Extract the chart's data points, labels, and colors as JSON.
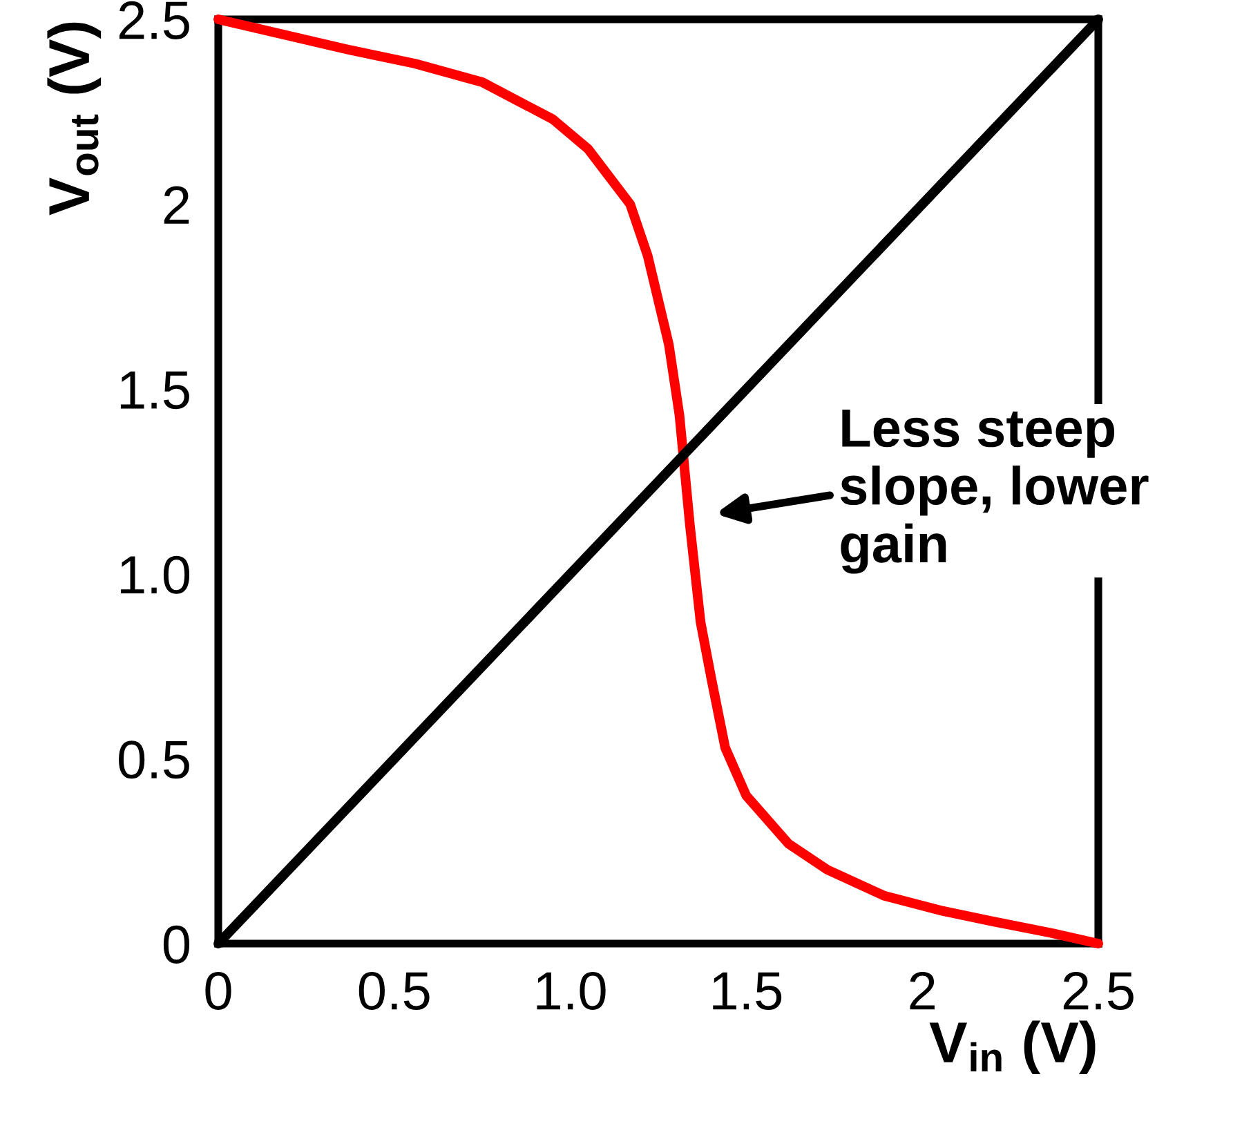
{
  "chart_data": {
    "type": "line",
    "xlabel": "V$_{in}$ (V)",
    "ylabel": "V$_{out}$ (V)",
    "xlim": [
      0,
      2.5
    ],
    "ylim": [
      0,
      2.5
    ],
    "xticks": [
      0,
      0.5,
      {
        "value": 1.0,
        "label": "1.0"
      },
      1.5,
      2,
      2.5
    ],
    "yticks": [
      0,
      0.5,
      {
        "value": 1.0,
        "label": "1.0"
      },
      1.5,
      2,
      2.5
    ],
    "grid": false,
    "line_style": "solid",
    "marker": "none",
    "series": [
      {
        "color": "#ff0000",
        "x": [
          0,
          0.36,
          0.56,
          0.75,
          0.95,
          1.05,
          1.17,
          1.22,
          1.28,
          1.31,
          1.34,
          1.37,
          1.4,
          1.44,
          1.5,
          1.62,
          1.73,
          1.89,
          2.05,
          2.2,
          2.36,
          2.5
        ],
        "values": [
          2.5,
          2.42,
          2.38,
          2.33,
          2.23,
          2.15,
          2.0,
          1.86,
          1.62,
          1.43,
          1.13,
          0.87,
          0.72,
          0.53,
          0.4,
          0.27,
          0.2,
          0.13,
          0.09,
          0.06,
          0.03,
          0
        ]
      },
      {
        "color": "#000000",
        "x": [
          0,
          2.5
        ],
        "values": [
          0,
          2.5
        ]
      }
    ],
    "annotations": [
      "Less steep\nslope, lower\ngain"
    ]
  }
}
